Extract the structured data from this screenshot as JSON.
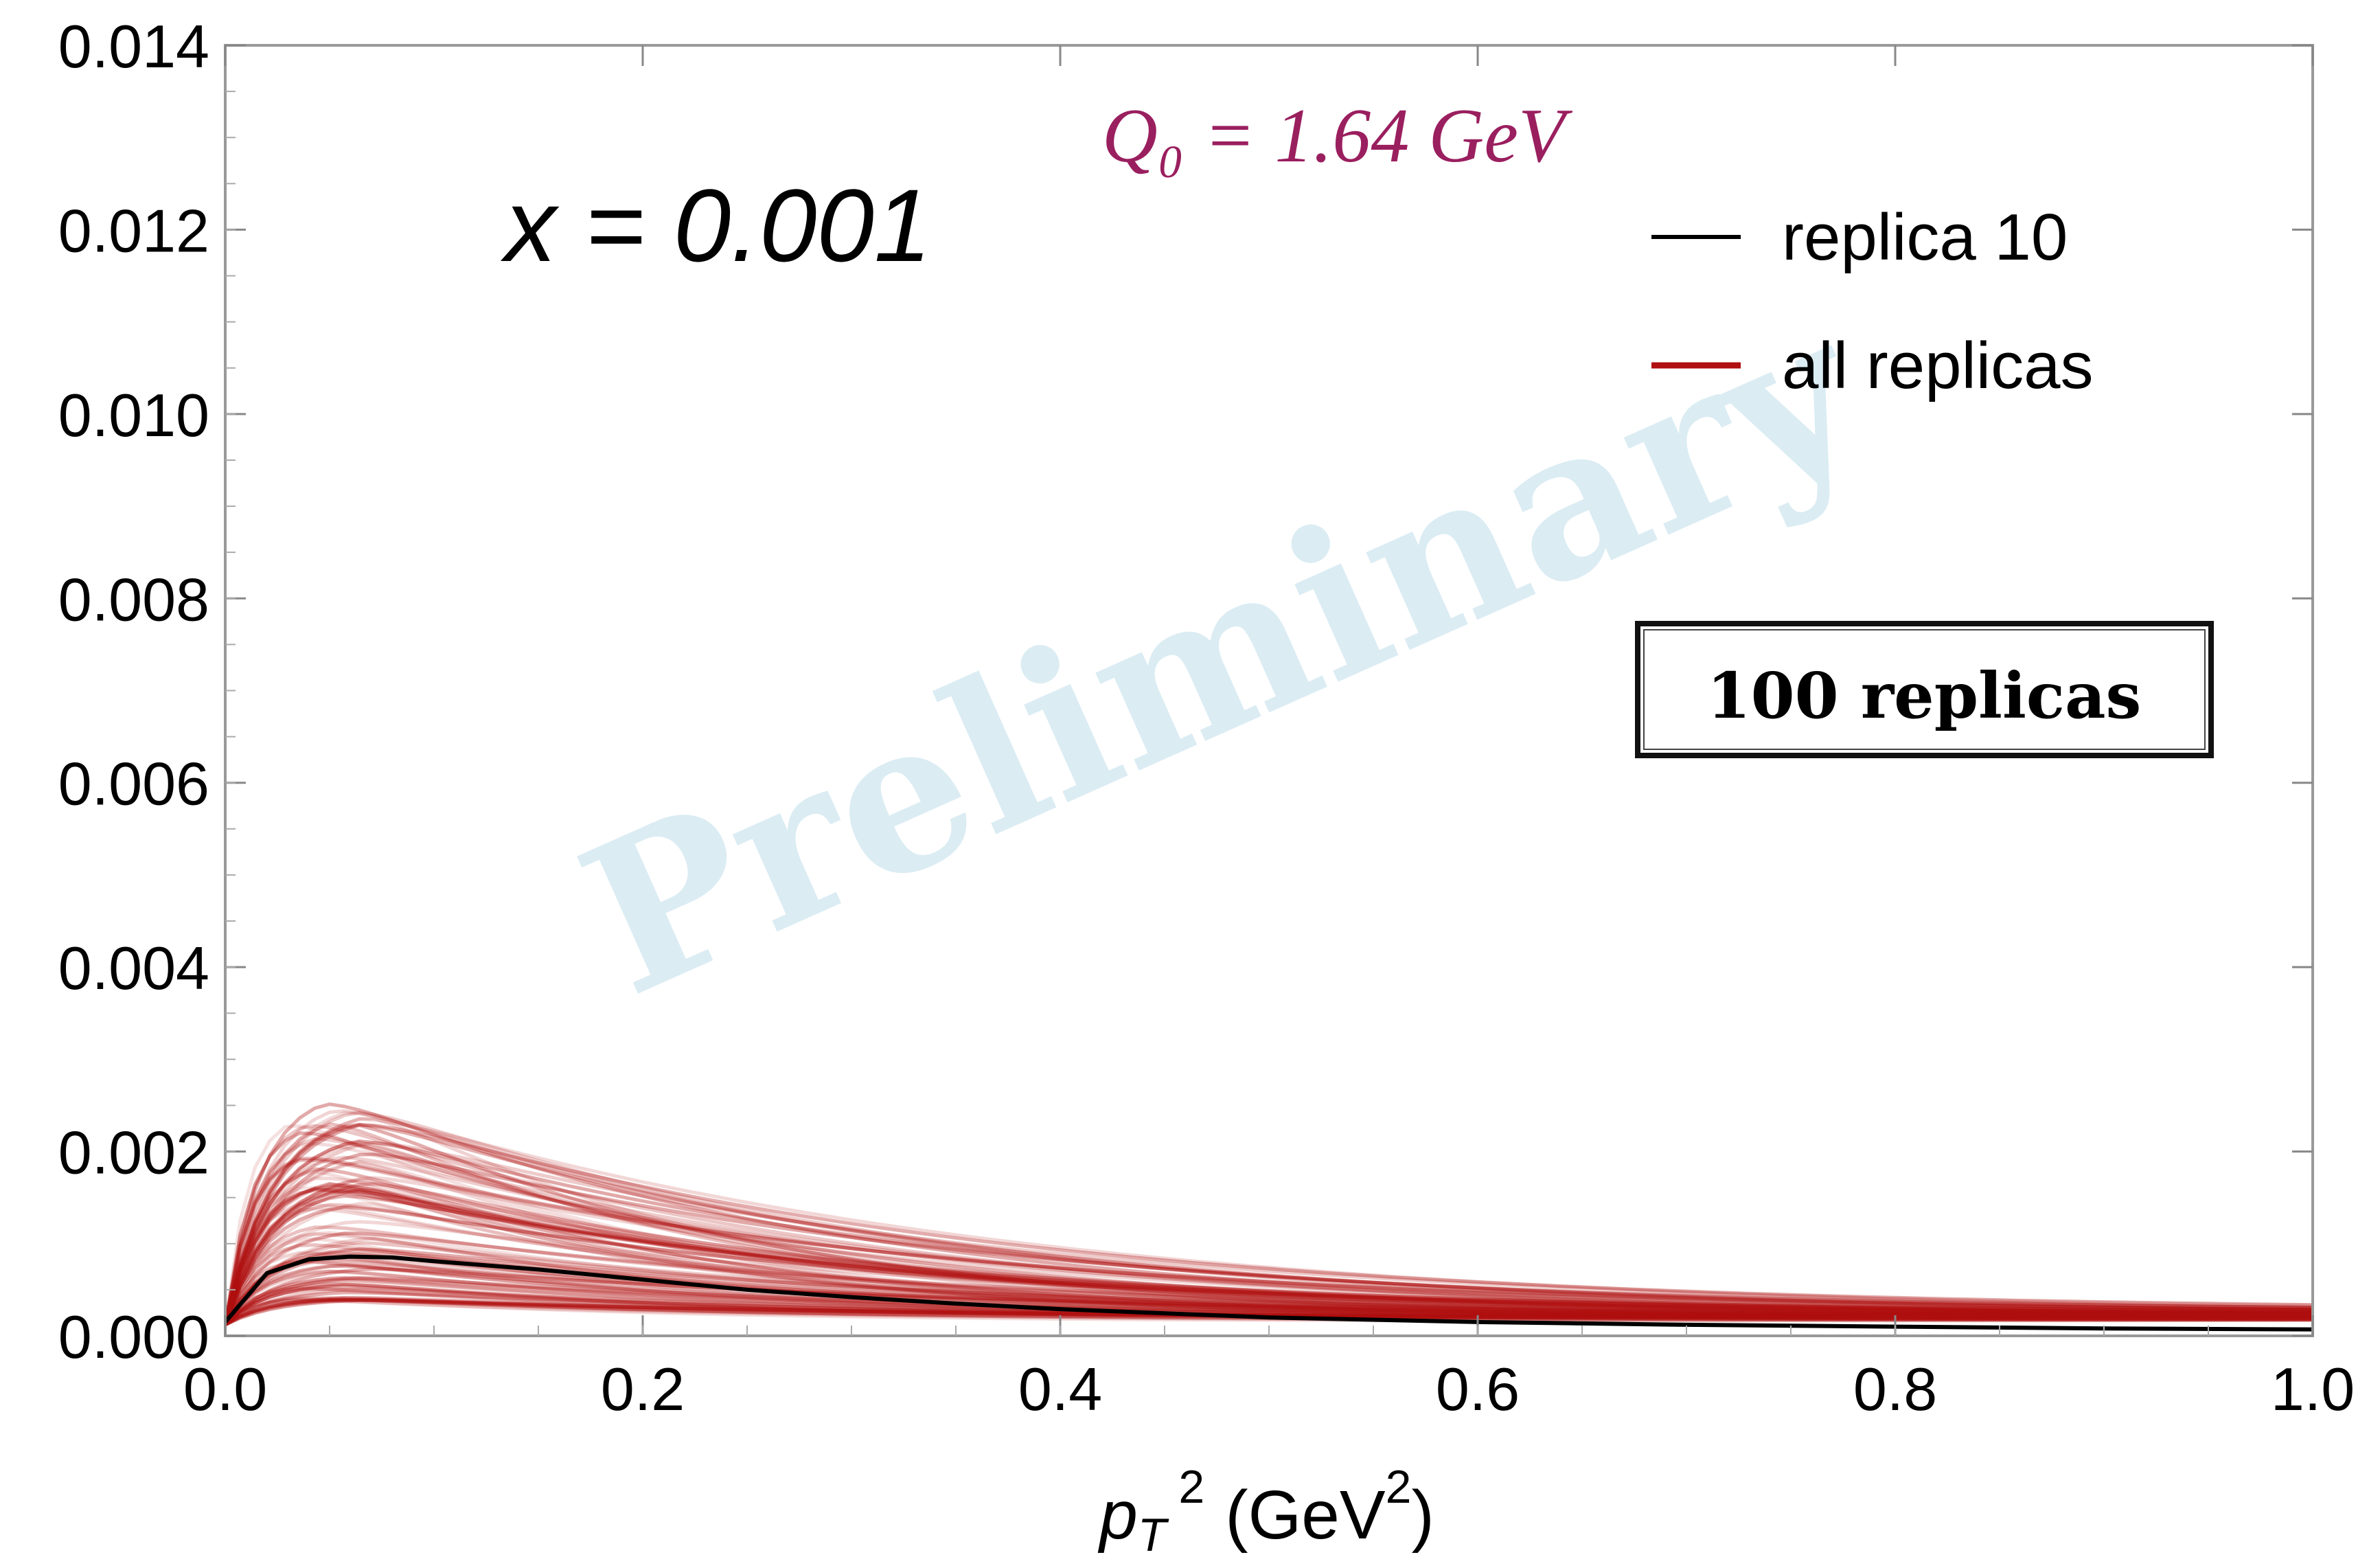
{
  "chart_data": {
    "type": "line",
    "title": "",
    "xlabel": "p_T^2 (GeV^2)",
    "xlabel_parts": {
      "var": "p",
      "sub": "T",
      "sup": "2",
      "unit_prefix": "(GeV",
      "unit_sup": "2",
      "unit_suffix": ")"
    },
    "ylabel": "",
    "xlim": [
      0.0,
      1.0
    ],
    "ylim": [
      0.0,
      0.014
    ],
    "x_ticks": [
      "0.0",
      "0.2",
      "0.4",
      "0.6",
      "0.8",
      "1.0"
    ],
    "y_ticks": [
      "0.000",
      "0.002",
      "0.004",
      "0.006",
      "0.008",
      "0.010",
      "0.012",
      "0.014"
    ],
    "grid": false,
    "legend_position": "top-right",
    "legend": [
      {
        "label": "replica 10",
        "color": "#000000"
      },
      {
        "label": "all replicas",
        "color": "#b01010"
      }
    ],
    "annotations": {
      "x_value": "x = 0.001",
      "scale": "Q₀ = 1.64 GeV",
      "replicas_box": "100 replicas",
      "watermark": "Preliminary"
    },
    "replica_color": "#b01010",
    "highlight_series": {
      "name": "replica 10",
      "x": [
        0.0,
        0.02,
        0.04,
        0.06,
        0.08,
        0.1,
        0.15,
        0.2,
        0.25,
        0.3,
        0.35,
        0.4,
        0.5,
        0.6,
        0.7,
        0.8,
        0.9,
        1.0
      ],
      "y": [
        0.00015,
        0.00068,
        0.00083,
        0.00086,
        0.00085,
        0.00081,
        0.00072,
        0.00061,
        0.0005,
        0.00042,
        0.00035,
        0.00029,
        0.0002,
        0.00015,
        0.00012,
        0.0001,
        8e-05,
        7e-05
      ]
    },
    "replica_band": {
      "count": 100,
      "peak_min": 0.0004,
      "peak_max": 0.0027,
      "peak_x_range": [
        0.03,
        0.07
      ]
    }
  }
}
